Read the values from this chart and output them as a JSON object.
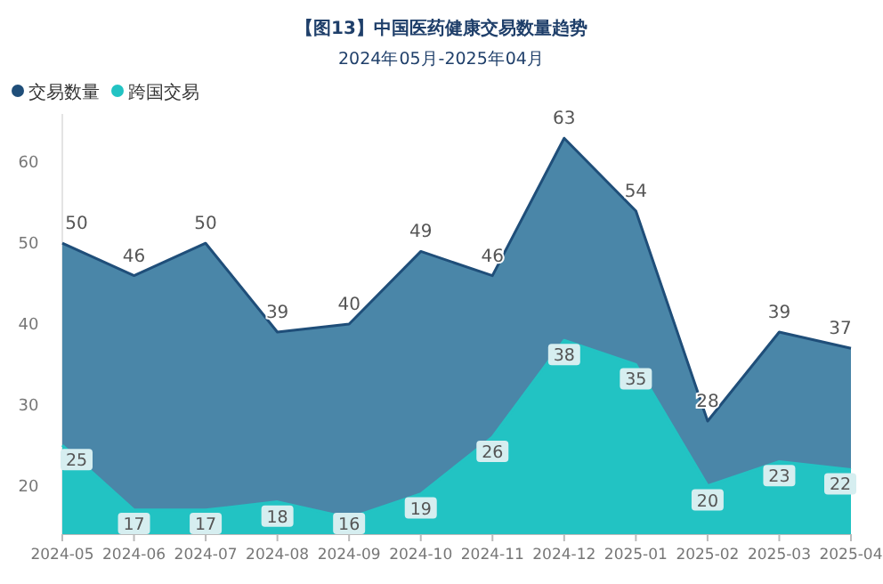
{
  "chart_data": {
    "type": "area",
    "title": "【图13】中国医药健康交易数量趋势",
    "subtitle": "2024年05月-2025年04月",
    "categories": [
      "2024-05",
      "2024-06",
      "2024-07",
      "2024-08",
      "2024-09",
      "2024-10",
      "2024-11",
      "2024-12",
      "2025-01",
      "2025-02",
      "2025-03",
      "2025-04"
    ],
    "series": [
      {
        "name": "交易数量",
        "color": "#4a86a8",
        "values": [
          50,
          46,
          50,
          39,
          40,
          49,
          46,
          63,
          54,
          28,
          39,
          37
        ]
      },
      {
        "name": "跨国交易",
        "color": "#22c3c3",
        "values": [
          25,
          17,
          17,
          18,
          16,
          19,
          26,
          38,
          35,
          20,
          23,
          22
        ]
      }
    ],
    "ylim": [
      14,
      66
    ],
    "yticks": [
      20,
      30,
      40,
      50,
      60
    ],
    "data_labels": true,
    "legend": "top left",
    "grid": false
  }
}
